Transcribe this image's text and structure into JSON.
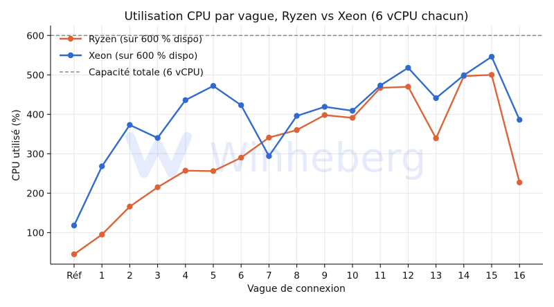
{
  "chart_data": {
    "type": "line",
    "title": "Utilisation CPU par vague, Ryzen vs Xeon (6 vCPU chacun)",
    "xlabel": "Vague de connexion",
    "ylabel": "CPU utilisé (%)",
    "categories": [
      "Réf",
      "1",
      "2",
      "3",
      "4",
      "5",
      "6",
      "7",
      "8",
      "9",
      "10",
      "11",
      "12",
      "13",
      "14",
      "15",
      "16"
    ],
    "y_ticks": [
      100,
      200,
      300,
      400,
      500,
      600
    ],
    "ylim": [
      20,
      625
    ],
    "grid": true,
    "legend_position": "top-left",
    "series": [
      {
        "name": "Ryzen (sur 600 % dispo)",
        "color": "#dd6336",
        "values": [
          45,
          95,
          166,
          215,
          257,
          256,
          290,
          341,
          360,
          398,
          391,
          467,
          470,
          339,
          497,
          500,
          227
        ]
      },
      {
        "name": "Xeon (sur 600 % dispo)",
        "color": "#2f6ad0",
        "values": [
          118,
          268,
          373,
          340,
          436,
          472,
          423,
          294,
          396,
          419,
          409,
          473,
          518,
          441,
          499,
          546,
          386
        ]
      }
    ],
    "reference_line": {
      "name": "Capacité totale (6 vCPU)",
      "value": 600,
      "color": "#777777"
    }
  },
  "watermark": {
    "text": "Winheberg"
  }
}
